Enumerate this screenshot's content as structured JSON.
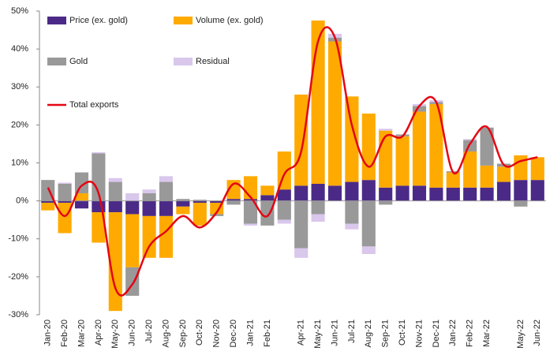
{
  "chart_data": {
    "type": "bar",
    "categories": [
      "Jan-20",
      "Feb-20",
      "Mar-20",
      "Apr-20",
      "May-20",
      "Jun-20",
      "Jul-20",
      "Aug-20",
      "Sep-20",
      "Oct-20",
      "Nov-20",
      "Dec-20",
      "Jan-21",
      "Feb-21",
      null,
      "Apr-21",
      "May-21",
      "Jun-21",
      "Jul-21",
      "Aug-21",
      "Sep-21",
      "Oct-21",
      "Nov-21",
      "Dec-21",
      "Jan-22",
      "Feb-22",
      "Mar-22",
      null,
      "May-22",
      "Jun-22"
    ],
    "series": [
      {
        "name": "Price (ex. gold)",
        "color": "#4b2a87",
        "type": "bar",
        "values": [
          -0.5,
          -0.5,
          -2,
          -3,
          -3,
          -3.5,
          -4,
          -4,
          -1.5,
          -0.5,
          -0.5,
          0.5,
          0.5,
          1.5,
          3,
          4,
          4.5,
          4,
          5,
          5.5,
          3.5,
          4,
          4,
          3.5,
          3.5,
          3.5,
          3.5,
          5,
          5.5,
          5.5
        ]
      },
      {
        "name": "Volume (ex. gold)",
        "color": "#ffaa00",
        "type": "bar",
        "values": [
          -2,
          -8,
          2,
          -8,
          -26,
          -14,
          -11,
          -11,
          -2,
          -6,
          -3,
          5,
          6,
          2.5,
          10,
          24,
          43,
          38,
          22.5,
          17.5,
          15,
          13,
          19.5,
          22,
          4,
          9.5,
          5.8,
          4,
          6.5,
          6
        ]
      },
      {
        "name": "Gold",
        "color": "#999999",
        "type": "bar",
        "values": [
          5.5,
          4.5,
          5.5,
          12.5,
          5,
          -7.5,
          2,
          5,
          0.5,
          0.3,
          -0.5,
          -1,
          -6,
          -6.5,
          -5,
          -12.5,
          -3.5,
          1,
          -6,
          -12,
          -1,
          0.5,
          1.5,
          0.5,
          0.3,
          3,
          10,
          0.8,
          -1.5,
          0
        ]
      },
      {
        "name": "Residual",
        "color": "#d9c7ec",
        "type": "bar",
        "values": [
          0,
          0.3,
          0,
          0.3,
          1,
          2,
          1,
          1.5,
          0,
          0,
          0,
          0,
          -0.5,
          0,
          -1,
          -2.5,
          -2,
          1,
          -1.5,
          -2,
          0.5,
          0,
          0.5,
          0.5,
          0,
          0.3,
          0,
          0,
          0,
          0
        ]
      },
      {
        "name": "Total exports",
        "color": "#e30613",
        "type": "line",
        "values": [
          3.5,
          -4,
          4,
          2,
          -23,
          -22,
          -12,
          -8,
          -4,
          -7,
          -3,
          4.5,
          1,
          -4,
          7,
          13,
          42,
          43,
          20,
          9,
          17,
          17,
          25,
          26,
          7.5,
          15,
          19.5,
          9.5,
          10.5,
          11.5
        ]
      }
    ],
    "ylim": [
      -30,
      50
    ],
    "yticks": [
      {
        "value": -30,
        "label": "-30%"
      },
      {
        "value": -20,
        "label": "-20%"
      },
      {
        "value": -10,
        "label": "-10%"
      },
      {
        "value": 0,
        "label": "0%"
      },
      {
        "value": 10,
        "label": "10%"
      },
      {
        "value": 20,
        "label": "20%"
      },
      {
        "value": 30,
        "label": "30%"
      },
      {
        "value": 40,
        "label": "40%"
      },
      {
        "value": 50,
        "label": "50%"
      }
    ],
    "grid": false
  }
}
